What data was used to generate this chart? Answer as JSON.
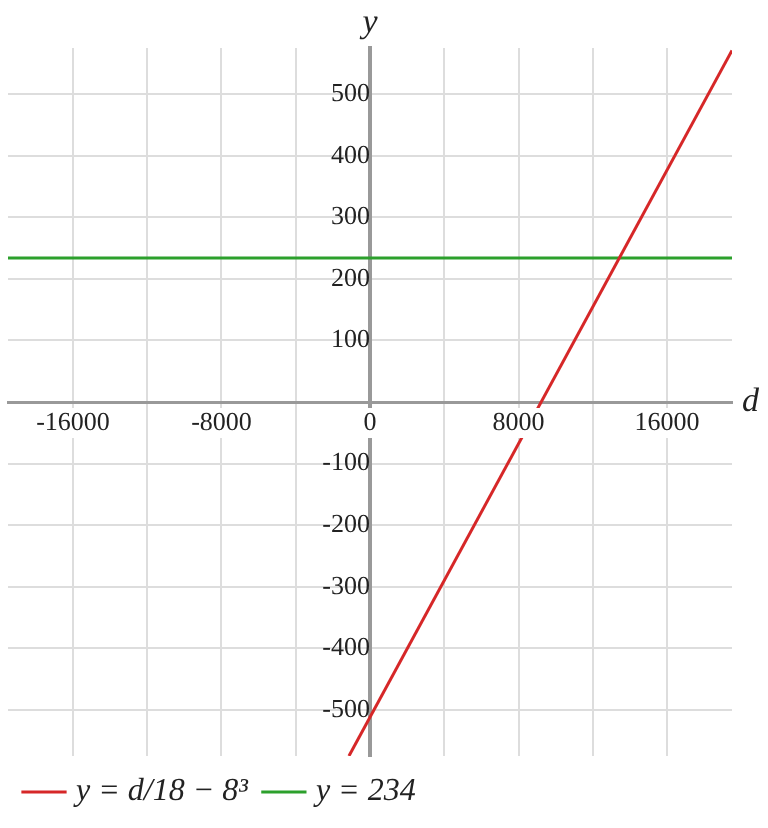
{
  "chart_data": {
    "type": "line",
    "xlabel": "d",
    "ylabel": "y",
    "xlim": [
      -19500,
      19500
    ],
    "ylim": [
      -575,
      575
    ],
    "xticks": [
      -16000,
      {
        "value": -12000,
        "label": null
      },
      -8000,
      {
        "value": -4000,
        "label": null
      },
      0,
      {
        "value": 4000,
        "label": null
      },
      8000,
      {
        "value": 12000,
        "label": null
      },
      16000
    ],
    "yticks": [
      -500,
      -400,
      -300,
      -200,
      -100,
      {
        "value": 0,
        "label": null
      },
      100,
      200,
      300,
      400,
      500
    ],
    "grid": true,
    "legend": "bottom left",
    "marker": "none",
    "line_style": "solid",
    "series": [
      {
        "name": "y = d/18 − 8³",
        "color": "#d62728",
        "x": [
          -1134,
          19500
        ],
        "values": [
          -575,
          571
        ]
      },
      {
        "name": "y = 234",
        "color": "#2ca02c",
        "x": [
          -19500,
          19500
        ],
        "values": [
          234,
          234
        ]
      }
    ]
  }
}
